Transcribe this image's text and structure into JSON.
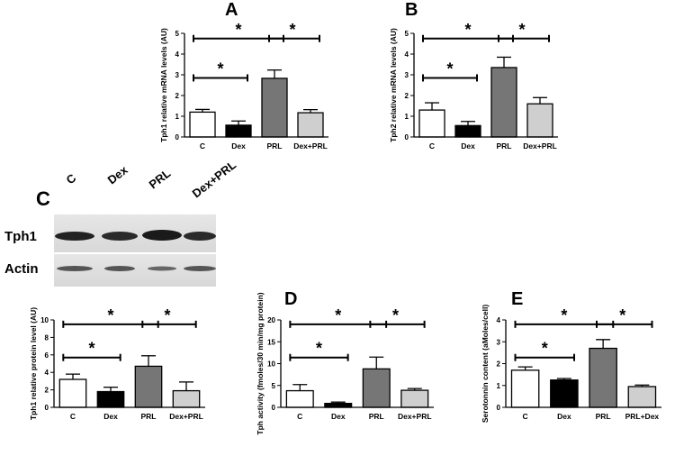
{
  "blot": {
    "panel": "C",
    "lanes": [
      "C",
      "Dex",
      "PRL",
      "Dex+PRL"
    ],
    "rows": [
      "Tph1",
      "Actin"
    ]
  },
  "chart_data": [
    {
      "type": "bar",
      "panel": "A",
      "ylabel": "Tph1 relative mRNA levels (AU)",
      "categories": [
        "C",
        "Dex",
        "PRL",
        "Dex+PRL"
      ],
      "values": [
        1.2,
        0.57,
        2.83,
        1.17
      ],
      "errors": [
        0.13,
        0.2,
        0.4,
        0.15
      ],
      "colors": [
        "#ffffff",
        "#000000",
        "#767676",
        "#cfcfcf"
      ],
      "ylim": [
        0,
        5
      ],
      "yticks": [
        0,
        1,
        2,
        3,
        4,
        5
      ],
      "annotations": [
        "*",
        "*",
        "*"
      ]
    },
    {
      "type": "bar",
      "panel": "B",
      "ylabel": "Tph2 relative mRNA levels (AU)",
      "categories": [
        "C",
        "Dex",
        "PRL",
        "Dex+PRL"
      ],
      "values": [
        1.3,
        0.55,
        3.35,
        1.6
      ],
      "errors": [
        0.35,
        0.2,
        0.5,
        0.3
      ],
      "colors": [
        "#ffffff",
        "#000000",
        "#767676",
        "#cfcfcf"
      ],
      "ylim": [
        0,
        5
      ],
      "yticks": [
        0,
        1,
        2,
        3,
        4,
        5
      ],
      "annotations": [
        "*",
        "*",
        "*"
      ]
    },
    {
      "type": "bar",
      "ylabel": "Tph1 relative protein level (AU)",
      "categories": [
        "C",
        "Dex",
        "PRL",
        "Dex+PRL"
      ],
      "values": [
        3.2,
        1.8,
        4.7,
        1.9
      ],
      "errors": [
        0.6,
        0.5,
        1.2,
        1.0
      ],
      "colors": [
        "#ffffff",
        "#000000",
        "#767676",
        "#cfcfcf"
      ],
      "ylim": [
        0,
        10
      ],
      "yticks": [
        0,
        2,
        4,
        6,
        8,
        10
      ],
      "annotations": [
        "*",
        "*",
        "*"
      ]
    },
    {
      "type": "bar",
      "panel": "D",
      "ylabel": "Tph activity (fmoles/30 min/mg protein)",
      "categories": [
        "C",
        "Dex",
        "PRL",
        "Dex+PRL"
      ],
      "values": [
        3.8,
        0.9,
        8.8,
        3.9
      ],
      "errors": [
        1.4,
        0.3,
        2.7,
        0.4
      ],
      "colors": [
        "#ffffff",
        "#000000",
        "#767676",
        "#cfcfcf"
      ],
      "ylim": [
        0,
        20
      ],
      "yticks": [
        0,
        5,
        10,
        15,
        20
      ],
      "annotations": [
        "*",
        "*",
        "*"
      ]
    },
    {
      "type": "bar",
      "panel": "E",
      "ylabel": "Serotonnin content (aMoles/cell)",
      "categories": [
        "C",
        "Dex",
        "PRL",
        "PRL+Dex"
      ],
      "values": [
        1.7,
        1.25,
        2.7,
        0.95
      ],
      "errors": [
        0.15,
        0.07,
        0.4,
        0.07
      ],
      "colors": [
        "#ffffff",
        "#000000",
        "#767676",
        "#cfcfcf"
      ],
      "ylim": [
        0,
        4
      ],
      "yticks": [
        0,
        1,
        2,
        3,
        4
      ],
      "annotations": [
        "*",
        "*",
        "*"
      ]
    }
  ]
}
